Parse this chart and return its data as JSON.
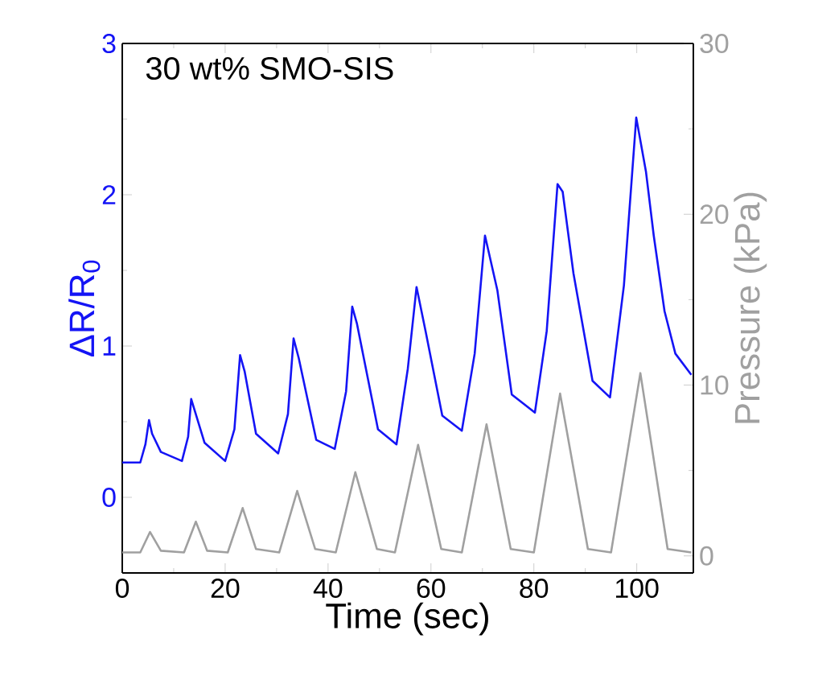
{
  "chart_data": {
    "type": "line",
    "xlabel": "Time (sec)",
    "ylabel": "ΔR/R$_{0}$",
    "y2label": "Pressure (kPa)",
    "annotations": [
      "30 wt% SMO-SIS"
    ],
    "xlim": [
      0,
      111
    ],
    "xticks": [
      0,
      20,
      40,
      60,
      80,
      100
    ],
    "ylim": [
      -0.5,
      3
    ],
    "yticks": [
      0,
      1,
      2,
      3
    ],
    "y2lim": [
      -1,
      30
    ],
    "y2ticks": [
      0,
      10,
      20,
      30
    ],
    "series": [
      {
        "color": "#1414f5",
        "axis": "y",
        "x": [
          0,
          3.5,
          4.5,
          5.2,
          5.8,
          7.5,
          11.6,
          12.8,
          13.4,
          14.2,
          16,
          20,
          21.8,
          22.9,
          23.8,
          26,
          30.3,
          32.2,
          33.3,
          34.3,
          37.7,
          41.3,
          43.5,
          44.7,
          45.6,
          49.7,
          53.3,
          55.5,
          57.2,
          59,
          62.2,
          66,
          68.5,
          70.5,
          72.9,
          75.7,
          80.2,
          82.5,
          84.6,
          85.6,
          87.7,
          91.4,
          94.8,
          97.5,
          99.9,
          101.8,
          103.3,
          105.4,
          107.5,
          110.6
        ],
        "values": [
          0.23,
          0.23,
          0.35,
          0.51,
          0.42,
          0.3,
          0.24,
          0.4,
          0.65,
          0.56,
          0.36,
          0.24,
          0.45,
          0.94,
          0.83,
          0.42,
          0.29,
          0.55,
          1.05,
          0.92,
          0.38,
          0.32,
          0.7,
          1.26,
          1.15,
          0.45,
          0.35,
          0.85,
          1.39,
          1.09,
          0.54,
          0.44,
          0.95,
          1.73,
          1.37,
          0.68,
          0.56,
          1.1,
          2.07,
          2.02,
          1.48,
          0.77,
          0.66,
          1.4,
          2.51,
          2.15,
          1.73,
          1.23,
          0.95,
          0.81
        ]
      },
      {
        "color": "#a0a0a0",
        "axis": "y2",
        "x": [
          0,
          3.5,
          5.4,
          7.5,
          12,
          14.3,
          16.5,
          20.5,
          23.4,
          26,
          30.5,
          34,
          37.5,
          41.5,
          45.3,
          49.5,
          53,
          57.5,
          62,
          66,
          70.8,
          75.5,
          80,
          85.1,
          90.5,
          95,
          100.7,
          106,
          110.6
        ],
        "values": [
          0.2,
          0.2,
          1.4,
          0.3,
          0.2,
          2.0,
          0.3,
          0.2,
          2.8,
          0.4,
          0.2,
          3.8,
          0.4,
          0.2,
          4.9,
          0.4,
          0.2,
          6.5,
          0.4,
          0.2,
          7.7,
          0.4,
          0.2,
          9.5,
          0.4,
          0.2,
          10.7,
          0.4,
          0.2
        ]
      }
    ]
  }
}
